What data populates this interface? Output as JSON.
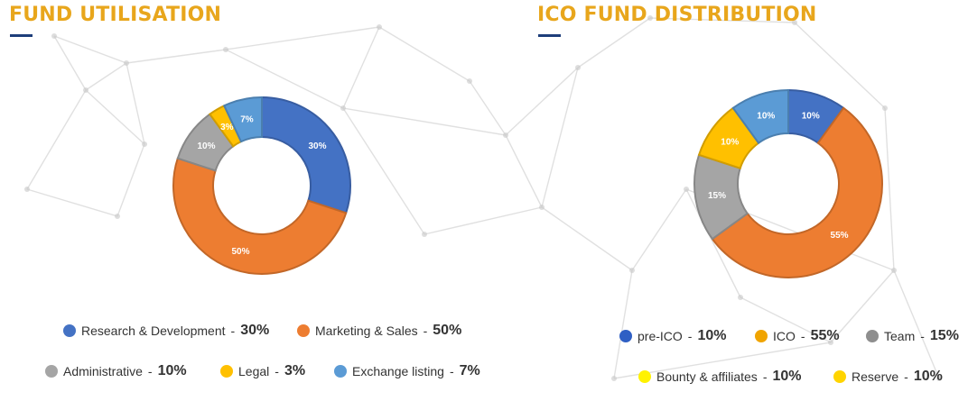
{
  "theme": {
    "title_color": "#E8A61C",
    "underline_color": "#1E3E7A",
    "legend_text_color": "#333333",
    "network_line_color": "#c8c8c8"
  },
  "chart_data": [
    {
      "type": "pie",
      "donut": true,
      "title": "FUND UTILISATION",
      "series": [
        {
          "label": "Research & Development",
          "value": 30,
          "color": "#4472C4",
          "slice_label": "30%",
          "legend_value": "30%"
        },
        {
          "label": "Marketing & Sales",
          "value": 50,
          "color": "#ED7D31",
          "slice_label": "50%",
          "legend_value": "50%"
        },
        {
          "label": "Administrative",
          "value": 10,
          "color": "#A5A5A5",
          "slice_label": "10%",
          "legend_value": "10%"
        },
        {
          "label": "Legal",
          "value": 3,
          "color": "#FFC000",
          "slice_label": "3%",
          "legend_value": "3%"
        },
        {
          "label": "Exchange listing",
          "value": 7,
          "color": "#5B9BD5",
          "slice_label": "7%",
          "legend_value": "7%"
        }
      ],
      "legend_placement": "bottom"
    },
    {
      "type": "pie",
      "donut": true,
      "title": "ICO FUND DISTRIBUTION",
      "series": [
        {
          "label": "pre-ICO",
          "value": 10,
          "color": "#4472C4",
          "slice_label": "10%",
          "legend_value": "10%"
        },
        {
          "label": "ICO",
          "value": 55,
          "color": "#ED7D31",
          "slice_label": "55%",
          "legend_value": "55%"
        },
        {
          "label": "Team",
          "value": 15,
          "color": "#A5A5A5",
          "slice_label": "15%",
          "legend_value": "15%"
        },
        {
          "label": "Bounty & affiliates",
          "value": 10,
          "color": "#FFC000",
          "slice_label": "10%",
          "legend_value": "10%"
        },
        {
          "label": "Reserve",
          "value": 10,
          "color": "#5B9BD5",
          "slice_label": "10%",
          "legend_value": "10%"
        }
      ],
      "legend_colors": [
        "#2F5FC4",
        "#F0A400",
        "#8E8E8E",
        "#FFF200",
        "#FFD400"
      ],
      "legend_placement": "bottom"
    }
  ]
}
